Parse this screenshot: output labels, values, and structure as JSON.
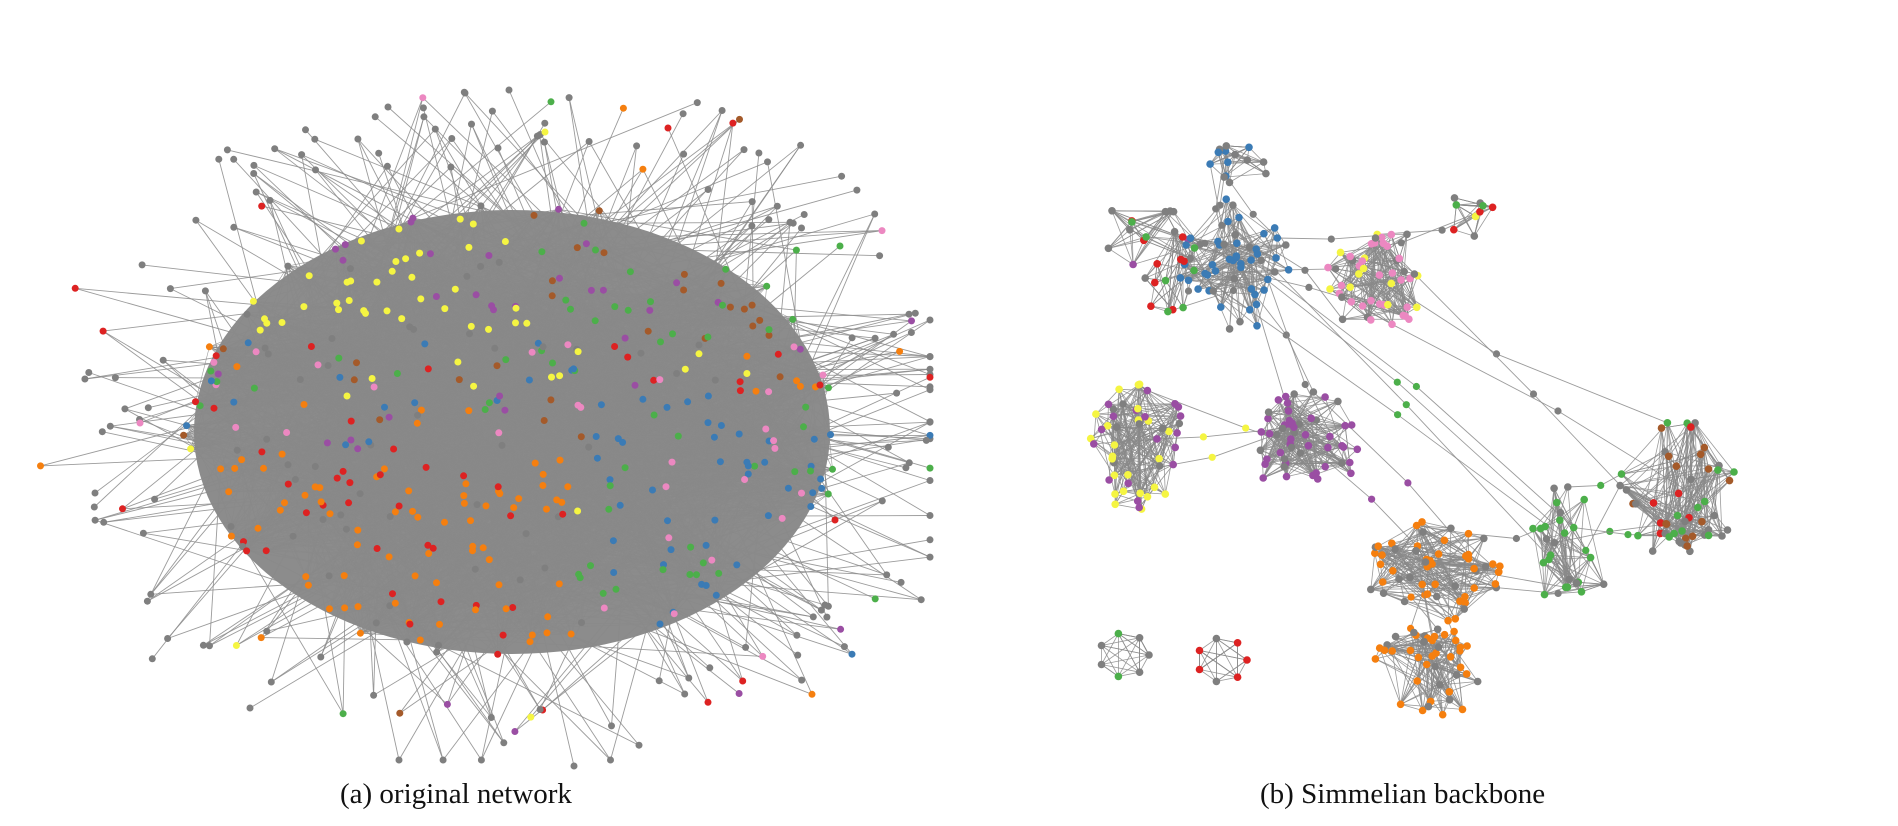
{
  "figure": {
    "panels": [
      {
        "caption": "(a) original network",
        "layout": "dense-hairball"
      },
      {
        "caption": "(b) Simmelian backbone",
        "layout": "clustered-backbone"
      }
    ]
  },
  "colors": {
    "edge": "#8a8a8a",
    "gray": "#7f7f7f",
    "yellow": "#f5f542",
    "purple": "#9a4ea3",
    "orange": "#f57f0f",
    "blue": "#3b7bb5",
    "green": "#4caf4a",
    "pink": "#ec88c1",
    "red": "#dd2222",
    "brown": "#a45a2a"
  }
}
